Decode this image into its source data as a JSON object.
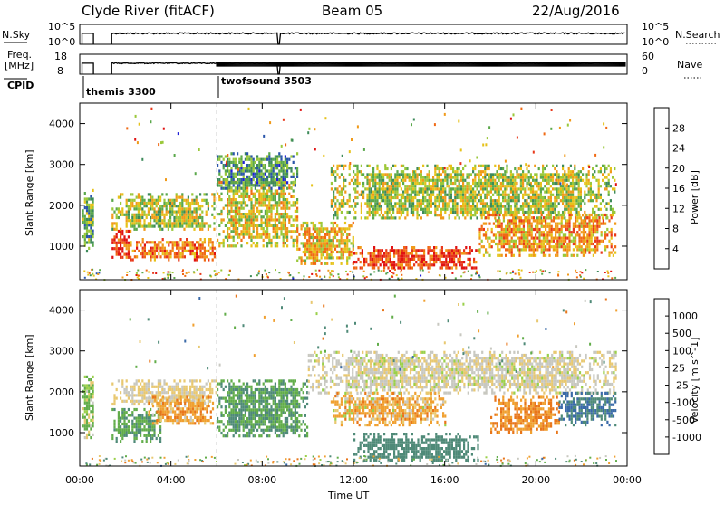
{
  "header": {
    "station": "Clyde River (fitACF)",
    "beam": "Beam 05",
    "date": "22/Aug/2016"
  },
  "summary_panels": {
    "nsky": {
      "left_label": "N.Sky",
      "left_ticks": [
        "10^5",
        "10^0"
      ],
      "right_label": "N.Search",
      "right_ticks": [
        "10^5",
        "10^0"
      ]
    },
    "freq": {
      "left_label_line1": "Freq.",
      "left_label_line2": "[MHz]",
      "left_ticks": [
        "18",
        "8"
      ],
      "right_label": "Nave",
      "right_ticks": [
        "60",
        "0"
      ]
    },
    "cpid": {
      "label": "CPID",
      "modes": [
        {
          "name": "themis 3300",
          "start_hour": 0
        },
        {
          "name": "twofsound 3503",
          "start_hour": 6
        }
      ]
    }
  },
  "x_axis": {
    "label": "Time UT",
    "ticks": [
      "00:00",
      "04:00",
      "08:00",
      "12:00",
      "16:00",
      "20:00",
      "00:00"
    ]
  },
  "power_colorbar": {
    "label": "Power [dB]",
    "ticks": [
      "4",
      "8",
      "12",
      "16",
      "20",
      "24",
      "28"
    ],
    "colors": [
      "#1f1fd8",
      "#2a55aa",
      "#3d8a5a",
      "#5aa84a",
      "#9ac83a",
      "#e6c21a",
      "#f09a1a",
      "#f06a14",
      "#e8381a",
      "#e01212"
    ]
  },
  "velocity_colorbar": {
    "label": "Velocity [m s^-1]",
    "ticks": [
      "1000",
      "500",
      "100",
      "25",
      "-25",
      "-100",
      "-500",
      "-1000"
    ],
    "colors": [
      "#2a3aa8",
      "#3a6aa8",
      "#4f8a78",
      "#62ad4a",
      "#9ad04a",
      "#c8c8c0",
      "#e8c870",
      "#f0a030",
      "#e8761a",
      "#e03a12",
      "#d8141a"
    ]
  },
  "chart_data": [
    {
      "type": "heatmap",
      "title": "Power [dB]",
      "xlabel": "Time UT",
      "ylabel": "Slant Range [km]",
      "xlim": [
        0,
        24
      ],
      "ylim": [
        180,
        4500
      ],
      "yticks": [
        "1000",
        "2000",
        "3000",
        "4000"
      ],
      "regions": [
        {
          "t": [
            0.1,
            0.6
          ],
          "r": [
            900,
            2400
          ],
          "level": 10
        },
        {
          "t": [
            1.4,
            2.2
          ],
          "r": [
            700,
            1400
          ],
          "level": 28
        },
        {
          "t": [
            1.4,
            5.9
          ],
          "r": [
            1400,
            2300
          ],
          "level": 14
        },
        {
          "t": [
            2.2,
            5.9
          ],
          "r": [
            700,
            1200
          ],
          "level": 22
        },
        {
          "t": [
            6.0,
            9.5
          ],
          "r": [
            1000,
            2600
          ],
          "level": 16
        },
        {
          "t": [
            6.0,
            9.5
          ],
          "r": [
            2400,
            3300
          ],
          "level": 8
        },
        {
          "t": [
            9.5,
            12.0
          ],
          "r": [
            600,
            1600
          ],
          "level": 18
        },
        {
          "t": [
            11.0,
            23.5
          ],
          "r": [
            1700,
            3000
          ],
          "level": 14
        },
        {
          "t": [
            12.0,
            17.5
          ],
          "r": [
            500,
            1000
          ],
          "level": 26
        },
        {
          "t": [
            17.5,
            23.5
          ],
          "r": [
            800,
            1800
          ],
          "level": 20
        }
      ]
    },
    {
      "type": "heatmap",
      "title": "Velocity [m s^-1]",
      "xlabel": "Time UT",
      "ylabel": "Slant Range [km]",
      "xlim": [
        0,
        24
      ],
      "ylim": [
        180,
        4500
      ],
      "yticks": [
        "1000",
        "2000",
        "3000",
        "4000"
      ],
      "regions": [
        {
          "t": [
            0.1,
            0.6
          ],
          "r": [
            900,
            2400
          ],
          "velocity": 100
        },
        {
          "t": [
            1.4,
            3.5
          ],
          "r": [
            800,
            1600
          ],
          "velocity": 300
        },
        {
          "t": [
            1.4,
            6.0
          ],
          "r": [
            1700,
            2300
          ],
          "velocity": -30
        },
        {
          "t": [
            3.0,
            5.8
          ],
          "r": [
            1200,
            1900
          ],
          "velocity": -200
        },
        {
          "t": [
            6.0,
            10.0
          ],
          "r": [
            900,
            2300
          ],
          "velocity": 300
        },
        {
          "t": [
            10.0,
            23.5
          ],
          "r": [
            2000,
            3000
          ],
          "velocity": -10
        },
        {
          "t": [
            11.0,
            16.0
          ],
          "r": [
            1200,
            2000
          ],
          "velocity": -150
        },
        {
          "t": [
            12.0,
            17.5
          ],
          "r": [
            300,
            1000
          ],
          "velocity": 500
        },
        {
          "t": [
            18.0,
            21.0
          ],
          "r": [
            1000,
            1900
          ],
          "velocity": -300
        },
        {
          "t": [
            21.0,
            23.5
          ],
          "r": [
            1200,
            2000
          ],
          "velocity": 700
        }
      ]
    }
  ]
}
